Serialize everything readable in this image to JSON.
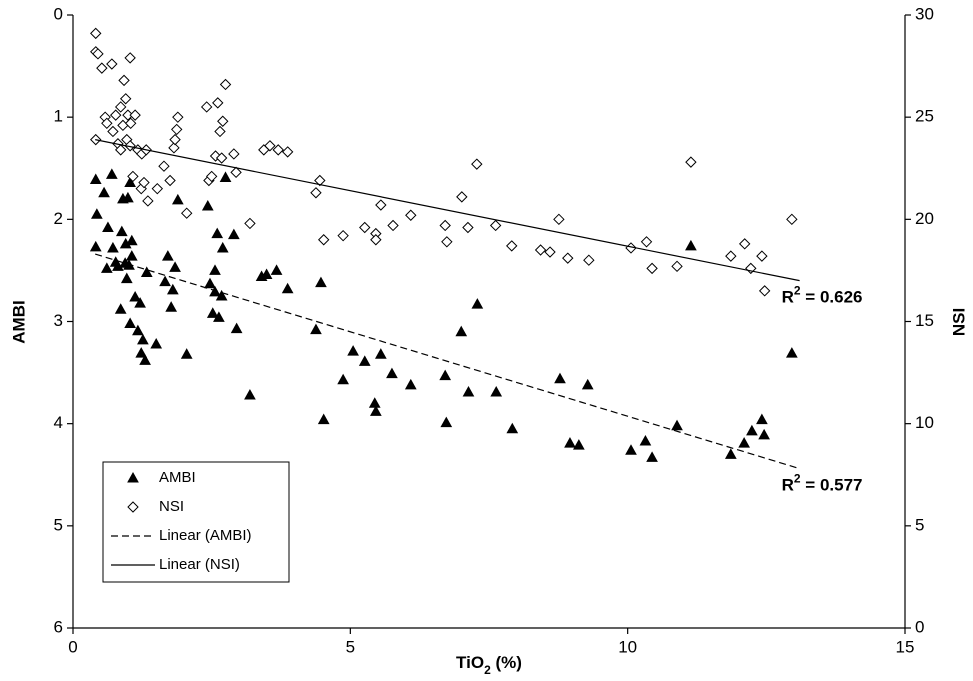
{
  "chart_data": {
    "type": "scatter",
    "x_label": {
      "text": "TiO",
      "sub": "2",
      "rest": " (%)"
    },
    "y_label": "AMBI",
    "y2_label": "NSI",
    "xlim": [
      0,
      15
    ],
    "xticks": [
      0,
      5,
      10,
      15
    ],
    "ylim": [
      0,
      6
    ],
    "yticks": [
      0,
      1,
      2,
      3,
      4,
      5,
      6
    ],
    "y_reversed": true,
    "y2lim": [
      0,
      30
    ],
    "y2ticks": [
      0,
      5,
      10,
      15,
      20,
      25,
      30
    ],
    "grid": false,
    "legend": "lower left",
    "series": [
      {
        "name": "AMBI",
        "color": "#000000",
        "marker": "triangle",
        "x": [
          0.41,
          0.43,
          0.41,
          0.56,
          0.61,
          0.63,
          0.7,
          0.72,
          0.77,
          0.81,
          0.86,
          0.88,
          0.9,
          0.94,
          0.95,
          0.97,
          0.99,
          1.01,
          1.03,
          1.06,
          1.06,
          1.03,
          1.12,
          1.17,
          1.21,
          1.23,
          1.26,
          1.3,
          1.33,
          1.5,
          1.66,
          1.71,
          1.77,
          1.8,
          1.84,
          1.89,
          2.05,
          2.43,
          2.47,
          2.52,
          2.56,
          2.56,
          2.6,
          2.63,
          2.68,
          2.7,
          2.75,
          2.9,
          2.95,
          3.19,
          3.4,
          3.49,
          3.67,
          3.87,
          4.38,
          4.47,
          4.52,
          4.87,
          5.05,
          5.26,
          5.44,
          5.46,
          5.55,
          5.75,
          6.09,
          6.71,
          6.73,
          7.0,
          7.13,
          7.29,
          7.63,
          7.92,
          8.78,
          8.96,
          9.12,
          9.28,
          10.06,
          10.32,
          10.44,
          10.89,
          11.14,
          11.86,
          12.1,
          12.24,
          12.42,
          12.46,
          12.96
        ],
        "values": [
          1.61,
          1.95,
          2.27,
          1.74,
          2.48,
          2.08,
          1.56,
          2.28,
          2.42,
          2.46,
          2.88,
          2.12,
          1.8,
          2.43,
          2.24,
          2.58,
          1.79,
          2.45,
          3.02,
          2.21,
          2.36,
          1.64,
          2.76,
          3.09,
          2.82,
          3.31,
          3.18,
          3.38,
          2.52,
          3.22,
          2.61,
          2.36,
          2.86,
          2.69,
          2.47,
          1.81,
          3.32,
          1.87,
          2.63,
          2.92,
          2.71,
          2.5,
          2.14,
          2.96,
          2.75,
          2.28,
          1.59,
          2.15,
          3.07,
          3.72,
          2.56,
          2.54,
          2.5,
          2.68,
          3.08,
          2.62,
          3.96,
          3.57,
          3.29,
          3.39,
          3.8,
          3.88,
          3.32,
          3.51,
          3.62,
          3.53,
          3.99,
          3.1,
          3.69,
          2.83,
          3.69,
          4.05,
          3.56,
          4.19,
          4.21,
          3.62,
          4.26,
          4.17,
          4.33,
          4.02,
          2.26,
          4.3,
          4.19,
          4.07,
          3.96,
          4.11,
          3.31
        ]
      },
      {
        "name": "NSI",
        "color": "#000000",
        "marker": "diamond",
        "axis": "y2",
        "x": [
          0.41,
          0.41,
          0.45,
          0.41,
          0.52,
          0.58,
          0.61,
          0.7,
          0.72,
          0.77,
          0.81,
          0.86,
          0.86,
          0.9,
          0.92,
          0.95,
          0.97,
          0.99,
          1.03,
          1.03,
          1.04,
          1.08,
          1.12,
          1.17,
          1.23,
          1.24,
          1.28,
          1.32,
          1.35,
          1.52,
          1.64,
          1.75,
          1.82,
          1.84,
          1.87,
          1.89,
          2.05,
          2.41,
          2.45,
          2.5,
          2.57,
          2.61,
          2.65,
          2.68,
          2.7,
          2.75,
          2.9,
          2.94,
          3.19,
          3.44,
          3.55,
          3.7,
          3.87,
          4.38,
          4.45,
          4.52,
          4.87,
          5.26,
          5.46,
          5.46,
          5.55,
          5.77,
          6.09,
          6.71,
          6.74,
          7.01,
          7.12,
          7.28,
          7.62,
          7.91,
          8.43,
          8.6,
          8.76,
          8.92,
          9.3,
          10.06,
          10.34,
          10.44,
          10.89,
          11.14,
          11.86,
          12.11,
          12.22,
          12.42,
          12.47,
          12.96
        ],
        "values": [
          29.1,
          28.2,
          28.1,
          23.9,
          27.4,
          25.0,
          24.7,
          27.6,
          24.3,
          25.1,
          23.7,
          25.5,
          23.4,
          24.6,
          26.8,
          25.9,
          23.9,
          25.1,
          23.6,
          27.9,
          24.7,
          22.1,
          25.1,
          23.4,
          21.5,
          23.2,
          21.8,
          23.4,
          20.9,
          21.5,
          22.6,
          21.9,
          23.5,
          23.9,
          24.4,
          25.0,
          20.3,
          25.5,
          21.9,
          22.1,
          23.1,
          25.7,
          24.3,
          23.0,
          24.8,
          26.6,
          23.2,
          22.3,
          19.8,
          23.4,
          23.6,
          23.4,
          23.3,
          21.3,
          21.9,
          19.0,
          19.2,
          19.6,
          19.3,
          19.0,
          20.7,
          19.7,
          20.2,
          19.7,
          18.9,
          21.1,
          19.6,
          22.7,
          19.7,
          18.7,
          18.5,
          18.4,
          20.0,
          18.1,
          18.0,
          18.6,
          18.9,
          17.6,
          17.7,
          22.8,
          18.2,
          18.8,
          17.6,
          18.2,
          16.5,
          20.0
        ]
      },
      {
        "name": "Linear (AMBI)",
        "color": "#000000",
        "line": "dashed",
        "x": [
          0.4,
          13.1
        ],
        "values": [
          2.34,
          4.44
        ]
      },
      {
        "name": "Linear (NSI)",
        "color": "#000000",
        "line": "solid",
        "axis": "y2",
        "x": [
          0.4,
          13.1
        ],
        "values": [
          23.9,
          17.0
        ]
      }
    ],
    "annotations": [
      {
        "base": "R",
        "sup": "2",
        "text": " = 0.626"
      },
      {
        "base": "R",
        "sup": "2",
        "text": " = 0.577"
      }
    ]
  }
}
